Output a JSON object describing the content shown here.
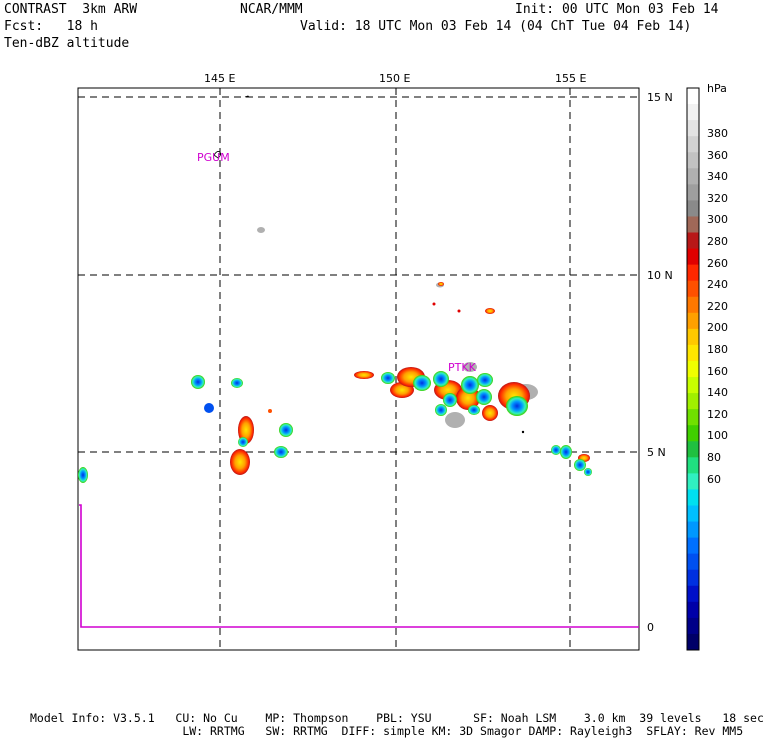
{
  "header": {
    "line1_left": "CONTRAST  3km ARW",
    "line1_center": "NCAR/MMM",
    "line1_right": "Init: 00 UTC Mon 03 Feb 14",
    "line2_left": "Fcst:   18 h",
    "line2_right": "Valid: 18 UTC Mon 03 Feb 14 (04 ChT Tue 04 Feb 14)",
    "line3_left": "Ten-dBZ altitude"
  },
  "map": {
    "lon_labels": [
      "145 E",
      "150 E",
      "155 E"
    ],
    "lat_labels": [
      "15 N",
      "10 N",
      "5 N",
      "0"
    ],
    "station_labels": [
      "PGUM",
      "PTKK"
    ],
    "colors": {
      "magenta": "#d000d0",
      "frame": "#000000",
      "grid": "#000000"
    }
  },
  "colorbar": {
    "unit": "hPa",
    "tick_labels": [
      "380",
      "360",
      "340",
      "320",
      "300",
      "280",
      "260",
      "240",
      "220",
      "200",
      "180",
      "160",
      "140",
      "120",
      "100",
      "80",
      "60"
    ],
    "colors": [
      "#ffffff",
      "#f2f2f2",
      "#e3e3e3",
      "#d2d2d2",
      "#c2c2c2",
      "#b0b0b0",
      "#9e9e9e",
      "#8a8a8a",
      "#a06858",
      "#b81818",
      "#e00000",
      "#ff2800",
      "#ff5000",
      "#ff7800",
      "#ffa000",
      "#ffc800",
      "#ffe600",
      "#f0ff00",
      "#c8ff00",
      "#a0f000",
      "#70e000",
      "#40d000",
      "#20c040",
      "#20e080",
      "#30f0c0",
      "#00e0f0",
      "#00c0ff",
      "#0098ff",
      "#0070ff",
      "#0050f0",
      "#0030e0",
      "#0010c8",
      "#0000a8",
      "#000088",
      "#000068"
    ]
  },
  "footer": {
    "line1": "Model Info: V3.5.1   CU: No Cu    MP: Thompson    PBL: YSU      SF: Noah LSM    3.0 km  39 levels   18 sec",
    "line2": "                      LW: RRTMG   SW: RRTMG  DIFF: simple KM: 3D Smagor DAMP: Rayleigh3  SFLAY: Rev MM5"
  }
}
